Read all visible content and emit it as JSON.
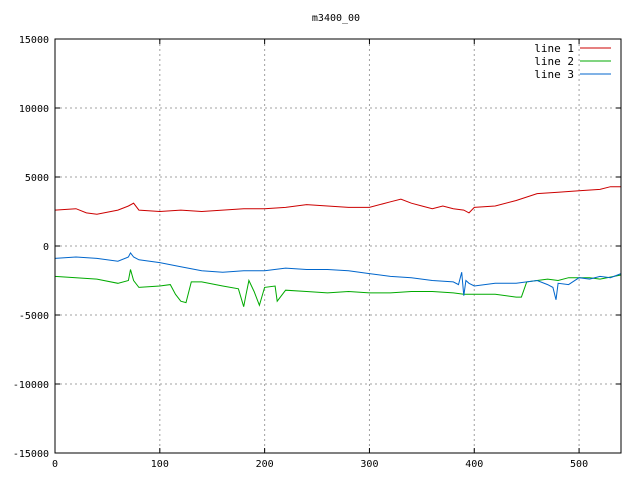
{
  "chart_data": {
    "type": "line",
    "title": "m3400_00",
    "xlabel": "",
    "ylabel": "",
    "xlim": [
      0,
      540
    ],
    "ylim": [
      -15000,
      15000
    ],
    "xticks": [
      0,
      100,
      200,
      300,
      400,
      500
    ],
    "yticks": [
      -15000,
      -10000,
      -5000,
      0,
      5000,
      10000,
      15000
    ],
    "grid": true,
    "legend_position": "top-right",
    "series": [
      {
        "name": "line 1",
        "color": "#cc0000",
        "x": [
          0,
          20,
          30,
          40,
          60,
          70,
          75,
          80,
          100,
          120,
          140,
          160,
          180,
          200,
          220,
          240,
          260,
          280,
          300,
          320,
          330,
          340,
          350,
          360,
          370,
          380,
          390,
          395,
          400,
          420,
          440,
          460,
          480,
          500,
          520,
          530,
          540
        ],
        "y": [
          2600,
          2700,
          2400,
          2300,
          2600,
          2900,
          3100,
          2600,
          2500,
          2600,
          2500,
          2600,
          2700,
          2700,
          2800,
          3000,
          2900,
          2800,
          2800,
          3200,
          3400,
          3100,
          2900,
          2700,
          2900,
          2700,
          2600,
          2400,
          2800,
          2900,
          3300,
          3800,
          3900,
          4000,
          4100,
          4300,
          4300
        ]
      },
      {
        "name": "line 2",
        "color": "#00aa00",
        "x": [
          0,
          20,
          40,
          60,
          70,
          72,
          75,
          80,
          100,
          110,
          115,
          120,
          125,
          130,
          140,
          160,
          175,
          180,
          182,
          185,
          190,
          195,
          200,
          210,
          212,
          220,
          240,
          260,
          280,
          300,
          320,
          340,
          360,
          380,
          390,
          400,
          420,
          440,
          445,
          450,
          460,
          470,
          480,
          490,
          500,
          510,
          520,
          540
        ],
        "y": [
          -2200,
          -2300,
          -2400,
          -2700,
          -2500,
          -1700,
          -2500,
          -3000,
          -2900,
          -2800,
          -3500,
          -4000,
          -4100,
          -2600,
          -2600,
          -2900,
          -3100,
          -4400,
          -3600,
          -2500,
          -3300,
          -4300,
          -3000,
          -2900,
          -4000,
          -3200,
          -3300,
          -3400,
          -3300,
          -3400,
          -3400,
          -3300,
          -3300,
          -3400,
          -3500,
          -3500,
          -3500,
          -3700,
          -3700,
          -2600,
          -2500,
          -2400,
          -2500,
          -2300,
          -2300,
          -2300,
          -2400,
          -2100
        ]
      },
      {
        "name": "line 3",
        "color": "#0066cc",
        "x": [
          0,
          20,
          40,
          60,
          70,
          72,
          75,
          80,
          100,
          120,
          140,
          160,
          180,
          200,
          220,
          240,
          260,
          280,
          300,
          320,
          340,
          360,
          380,
          385,
          388,
          390,
          392,
          395,
          400,
          420,
          440,
          460,
          470,
          475,
          478,
          480,
          490,
          500,
          510,
          520,
          530,
          540
        ],
        "y": [
          -900,
          -800,
          -900,
          -1100,
          -800,
          -500,
          -800,
          -1000,
          -1200,
          -1500,
          -1800,
          -1900,
          -1800,
          -1800,
          -1600,
          -1700,
          -1700,
          -1800,
          -2000,
          -2200,
          -2300,
          -2500,
          -2600,
          -2800,
          -1900,
          -3600,
          -2500,
          -2700,
          -2900,
          -2700,
          -2700,
          -2500,
          -2800,
          -3000,
          -3900,
          -2700,
          -2800,
          -2300,
          -2400,
          -2200,
          -2300,
          -2000
        ]
      }
    ]
  }
}
